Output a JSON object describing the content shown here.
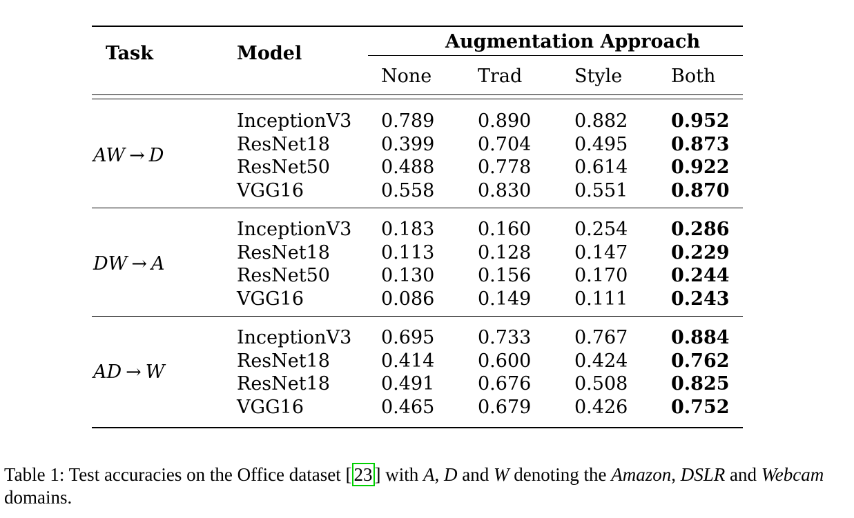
{
  "table": {
    "headers": {
      "task": "Task",
      "model": "Model",
      "group": "Augmentation Approach",
      "columns": [
        "None",
        "Trad",
        "Style",
        "Both"
      ]
    },
    "groups": [
      {
        "task": {
          "from": "AW",
          "arrow": "→",
          "to": "D"
        },
        "rows": [
          {
            "model": "InceptionV3",
            "values": [
              "0.789",
              "0.890",
              "0.882",
              "0.952"
            ]
          },
          {
            "model": "ResNet18",
            "values": [
              "0.399",
              "0.704",
              "0.495",
              "0.873"
            ]
          },
          {
            "model": "ResNet50",
            "values": [
              "0.488",
              "0.778",
              "0.614",
              "0.922"
            ]
          },
          {
            "model": "VGG16",
            "values": [
              "0.558",
              "0.830",
              "0.551",
              "0.870"
            ]
          }
        ]
      },
      {
        "task": {
          "from": "DW",
          "arrow": "→",
          "to": "A"
        },
        "rows": [
          {
            "model": "InceptionV3",
            "values": [
              "0.183",
              "0.160",
              "0.254",
              "0.286"
            ]
          },
          {
            "model": "ResNet18",
            "values": [
              "0.113",
              "0.128",
              "0.147",
              "0.229"
            ]
          },
          {
            "model": "ResNet50",
            "values": [
              "0.130",
              "0.156",
              "0.170",
              "0.244"
            ]
          },
          {
            "model": "VGG16",
            "values": [
              "0.086",
              "0.149",
              "0.111",
              "0.243"
            ]
          }
        ]
      },
      {
        "task": {
          "from": "AD",
          "arrow": "→",
          "to": "W"
        },
        "rows": [
          {
            "model": "InceptionV3",
            "values": [
              "0.695",
              "0.733",
              "0.767",
              "0.884"
            ]
          },
          {
            "model": "ResNet18",
            "values": [
              "0.414",
              "0.600",
              "0.424",
              "0.762"
            ]
          },
          {
            "model": "ResNet18",
            "values": [
              "0.491",
              "0.676",
              "0.508",
              "0.825"
            ]
          },
          {
            "model": "VGG16",
            "values": [
              "0.465",
              "0.679",
              "0.426",
              "0.752"
            ]
          }
        ]
      }
    ]
  },
  "caption": {
    "prefix": "Table 1: Test accuracies on the Office dataset [",
    "citation": "23",
    "mid1": "] with ",
    "a": "A",
    "sep1": ", ",
    "d": "D",
    "mid2": " and ",
    "w": "W",
    "mid3": " denoting the ",
    "amazon": "Amazon",
    "sep2": ", ",
    "dslr": "DSLR",
    "mid4": " and ",
    "webcam": "Webcam",
    "suffix": " domains."
  },
  "colors": {
    "citation_box": "#00d000"
  }
}
